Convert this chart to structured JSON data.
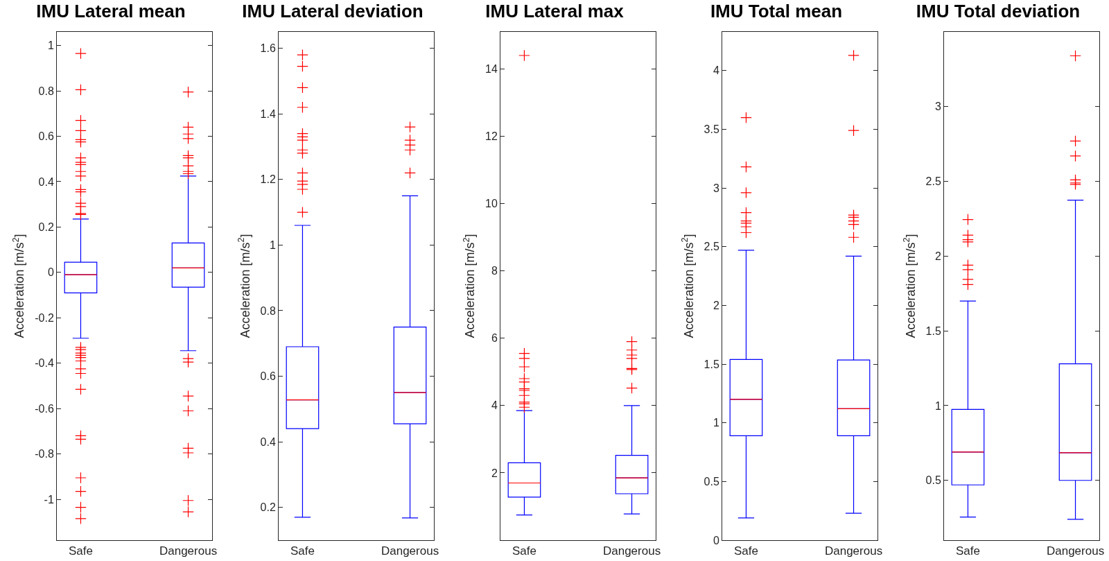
{
  "chart_data": [
    {
      "type": "box",
      "title": "IMU Lateral mean",
      "ylabel": "Acceleration [m/s$^{2}$]",
      "categories": [
        "Safe",
        "Dangerous"
      ],
      "ylim": [
        -1.18,
        1.06
      ],
      "yticks": [
        -1,
        -0.8,
        -0.6,
        -0.4,
        -0.2,
        0,
        0.2,
        0.4,
        0.6,
        0.8,
        1
      ],
      "grid": false,
      "series": [
        {
          "color": "#0000ff",
          "boxes": [
            {
              "low": -0.29,
              "q1": -0.09,
              "median": -0.01,
              "q3": 0.045,
              "high": 0.235,
              "outliers": [
                0.965,
                0.805,
                0.67,
                0.625,
                0.585,
                0.575,
                0.505,
                0.485,
                0.475,
                0.445,
                0.425,
                0.365,
                0.355,
                0.305,
                0.29,
                0.26,
                0.255,
                -0.33,
                -0.34,
                -0.355,
                -0.365,
                -0.375,
                -0.39,
                -0.425,
                -0.445,
                -0.515,
                -0.72,
                -0.735,
                -0.905,
                -0.965,
                -1.035,
                -1.085
              ]
            },
            {
              "low": -0.345,
              "q1": -0.065,
              "median": 0.02,
              "q3": 0.13,
              "high": 0.425,
              "outliers": [
                0.795,
                0.64,
                0.61,
                0.59,
                0.515,
                0.505,
                0.47,
                0.445,
                0.435,
                -0.38,
                -0.395,
                -0.545,
                -0.61,
                -0.775,
                -0.795,
                -1.005,
                -1.055
              ]
            }
          ]
        }
      ]
    },
    {
      "type": "box",
      "title": "IMU Lateral deviation",
      "ylabel": "Acceleration [m/s$^{2}$]",
      "categories": [
        "Safe",
        "Dangerous"
      ],
      "ylim": [
        0.1,
        1.65
      ],
      "yticks": [
        0.2,
        0.4,
        0.6,
        0.8,
        1,
        1.2,
        1.4,
        1.6
      ],
      "grid": false,
      "series": [
        {
          "color": "#0000ff",
          "boxes": [
            {
              "low": 0.17,
              "q1": 0.44,
              "median": 0.528,
              "q3": 0.69,
              "high": 1.06,
              "outliers": [
                1.58,
                1.545,
                1.48,
                1.42,
                1.34,
                1.33,
                1.32,
                1.29,
                1.28,
                1.22,
                1.195,
                1.185,
                1.17,
                1.1
              ]
            },
            {
              "low": 0.168,
              "q1": 0.455,
              "median": 0.55,
              "q3": 0.75,
              "high": 1.15,
              "outliers": [
                1.36,
                1.32,
                1.305,
                1.29,
                1.22
              ]
            }
          ]
        }
      ]
    },
    {
      "type": "box",
      "title": "IMU Lateral max",
      "ylabel": "Acceleration [m/s$^{2}$]",
      "categories": [
        "Safe",
        "Dangerous"
      ],
      "ylim": [
        0,
        15.1
      ],
      "yticks": [
        2,
        4,
        6,
        8,
        10,
        12,
        14
      ],
      "grid": false,
      "series": [
        {
          "color": "#0000ff",
          "boxes": [
            {
              "low": 0.75,
              "q1": 1.28,
              "median": 1.7,
              "q3": 2.3,
              "high": 3.85,
              "outliers": [
                14.4,
                5.55,
                5.4,
                5.15,
                4.8,
                4.7,
                4.5,
                4.45,
                4.3,
                4.1,
                4.05,
                3.95
              ]
            },
            {
              "low": 0.78,
              "q1": 1.38,
              "median": 1.85,
              "q3": 2.52,
              "high": 4.0,
              "outliers": [
                5.9,
                5.65,
                5.5,
                5.4,
                5.1,
                5.07,
                4.52
              ]
            }
          ]
        }
      ]
    },
    {
      "type": "box",
      "title": "IMU Total mean",
      "ylabel": "Acceleration [m/s$^{2}$]",
      "categories": [
        "Safe",
        "Dangerous"
      ],
      "ylim": [
        0,
        4.33
      ],
      "yticks": [
        0,
        0.5,
        1,
        1.5,
        2,
        2.5,
        3,
        3.5,
        4
      ],
      "grid": false,
      "series": [
        {
          "color": "#0000ff",
          "boxes": [
            {
              "low": 0.19,
              "q1": 0.89,
              "median": 1.2,
              "q3": 1.54,
              "high": 2.47,
              "outliers": [
                3.6,
                3.18,
                2.96,
                2.79,
                2.72,
                2.7,
                2.67,
                2.62
              ]
            },
            {
              "low": 0.23,
              "q1": 0.89,
              "median": 1.12,
              "q3": 1.535,
              "high": 2.42,
              "outliers": [
                4.13,
                3.49,
                2.77,
                2.75,
                2.72,
                2.69,
                2.58
              ]
            }
          ]
        }
      ]
    },
    {
      "type": "box",
      "title": "IMU Total deviation",
      "ylabel": "Acceleration [m/s$^{2}$]",
      "categories": [
        "Safe",
        "Dangerous"
      ],
      "ylim": [
        0.1,
        3.5
      ],
      "yticks": [
        0.5,
        1,
        1.5,
        2,
        2.5,
        3
      ],
      "grid": false,
      "series": [
        {
          "color": "#0000ff",
          "boxes": [
            {
              "low": 0.255,
              "q1": 0.47,
              "median": 0.69,
              "q3": 0.975,
              "high": 1.7,
              "outliers": [
                2.245,
                2.14,
                2.11,
                2.095,
                1.94,
                1.91,
                1.845,
                1.81
              ]
            },
            {
              "low": 0.24,
              "q1": 0.5,
              "median": 0.685,
              "q3": 1.28,
              "high": 2.375,
              "outliers": [
                3.34,
                2.77,
                2.67,
                2.51,
                2.49,
                2.48
              ]
            }
          ]
        }
      ]
    }
  ]
}
